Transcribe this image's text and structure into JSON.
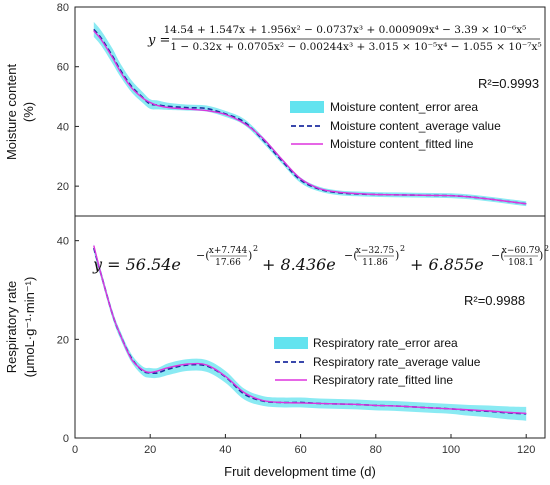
{
  "chart_data": [
    {
      "type": "line",
      "panel": "top",
      "ylabel": "Moisture content",
      "ylabel_unit": "(%)",
      "xlim": [
        0,
        125
      ],
      "ylim": [
        10,
        80
      ],
      "yticks": [
        "20",
        "40",
        "60",
        "80"
      ],
      "r2": "R²=0.9993",
      "equation": {
        "lhs": "y =",
        "numerator": "14.54 + 1.547x + 1.956x² − 0.0737x³ + 0.000909x⁴ − 3.39 × 10⁻⁶x⁵",
        "denominator": "1 − 0.32x + 0.0705x² − 0.00244x³ + 3.015 × 10⁻⁵x⁴ − 1.055 × 10⁻⁷x⁵"
      },
      "legend": [
        "Moisture content_error area",
        "Moisture content_average value",
        "Moisture content_fitted line"
      ],
      "x": [
        5,
        7,
        10,
        12,
        15,
        18,
        20,
        22,
        25,
        30,
        35,
        40,
        45,
        50,
        55,
        60,
        65,
        70,
        75,
        80,
        85,
        90,
        95,
        100,
        105,
        110,
        115,
        120
      ],
      "fitted": [
        72,
        69,
        63,
        58.5,
        53,
        49.5,
        48,
        47,
        46.3,
        45.8,
        45.3,
        44,
        41,
        36,
        29,
        22.5,
        19.2,
        18,
        17.5,
        17.2,
        17.1,
        17,
        16.9,
        16.8,
        16.4,
        15.7,
        14.9,
        14.1
      ],
      "average": [
        72.5,
        69.5,
        63.5,
        59,
        53.5,
        49.7,
        47.5,
        47.2,
        46.7,
        46.3,
        46,
        44.2,
        41.5,
        35.5,
        28.5,
        22,
        19,
        17.8,
        17.4,
        17.2,
        17.1,
        17,
        16.9,
        16.8,
        16.4,
        15.7,
        14.9,
        14.1
      ],
      "error_band": [
        2.5,
        2.5,
        2.5,
        2.2,
        2,
        1.8,
        1.6,
        1.5,
        1.2,
        1,
        1,
        1,
        1,
        1,
        0.9,
        0.9,
        0.8,
        0.8,
        0.8,
        0.8,
        0.8,
        0.8,
        0.8,
        0.8,
        0.8,
        0.8,
        0.8,
        0.8
      ]
    },
    {
      "type": "line",
      "panel": "bottom",
      "ylabel": "Respiratory rate",
      "ylabel_unit": "(μmoL·g⁻¹·min⁻¹)",
      "xlabel": "Fruit development time (d)",
      "xlim": [
        0,
        125
      ],
      "ylim": [
        0,
        45
      ],
      "xticks": [
        "0",
        "20",
        "40",
        "60",
        "80",
        "100",
        "120"
      ],
      "yticks": [
        "0",
        "20",
        "40"
      ],
      "r2": "R²=0.9988",
      "equation": {
        "lhs": "y = 56.54e",
        "term1": "−(x+7.744 / 17.66)²",
        "mid1": "+ 8.436e",
        "term2": "−(x−32.75 / 11.86)²",
        "mid2": "+ 6.855e",
        "term3": "−(x−60.79 / 108.1)²",
        "t1_num": "x+7.744",
        "t1_den": "17.66",
        "t2_num": "x−32.75",
        "t2_den": "11.86",
        "t3_num": "x−60.79",
        "t3_den": "108.1"
      },
      "legend": [
        "Respiratory rate_error area",
        "Respiratory rate_average value",
        "Respiratory rate_fitted line"
      ],
      "x": [
        5,
        7,
        10,
        12,
        15,
        18,
        20,
        22,
        25,
        30,
        35,
        40,
        45,
        50,
        55,
        60,
        65,
        70,
        75,
        80,
        85,
        90,
        95,
        100,
        105,
        110,
        115,
        120
      ],
      "fitted": [
        39,
        33,
        25,
        21,
        16,
        13.8,
        13.3,
        13.6,
        14.3,
        15,
        14.8,
        12.5,
        9.2,
        7.6,
        7.2,
        7.1,
        7,
        6.9,
        6.8,
        6.6,
        6.5,
        6.3,
        6.1,
        5.9,
        5.7,
        5.5,
        5.2,
        5
      ],
      "average": [
        38.5,
        33,
        25,
        21,
        16.2,
        13.6,
        13.2,
        13.2,
        14,
        14.8,
        14.6,
        12.4,
        8.9,
        7.5,
        7.2,
        7.2,
        7,
        6.9,
        6.8,
        6.6,
        6.5,
        6.3,
        6.1,
        5.9,
        5.6,
        5.4,
        5.1,
        4.9
      ],
      "error_band": [
        0.8,
        0.8,
        0.8,
        0.8,
        0.8,
        0.9,
        1,
        1,
        1.2,
        1.2,
        1.2,
        1.2,
        1.1,
        1,
        1,
        1,
        1,
        1,
        1,
        1,
        1,
        1,
        1,
        1,
        1.1,
        1.2,
        1.3,
        1.4
      ]
    }
  ],
  "colors": {
    "fitted": "#dd33dd",
    "average": "#1f2fa0",
    "error": "#63e3ef"
  }
}
